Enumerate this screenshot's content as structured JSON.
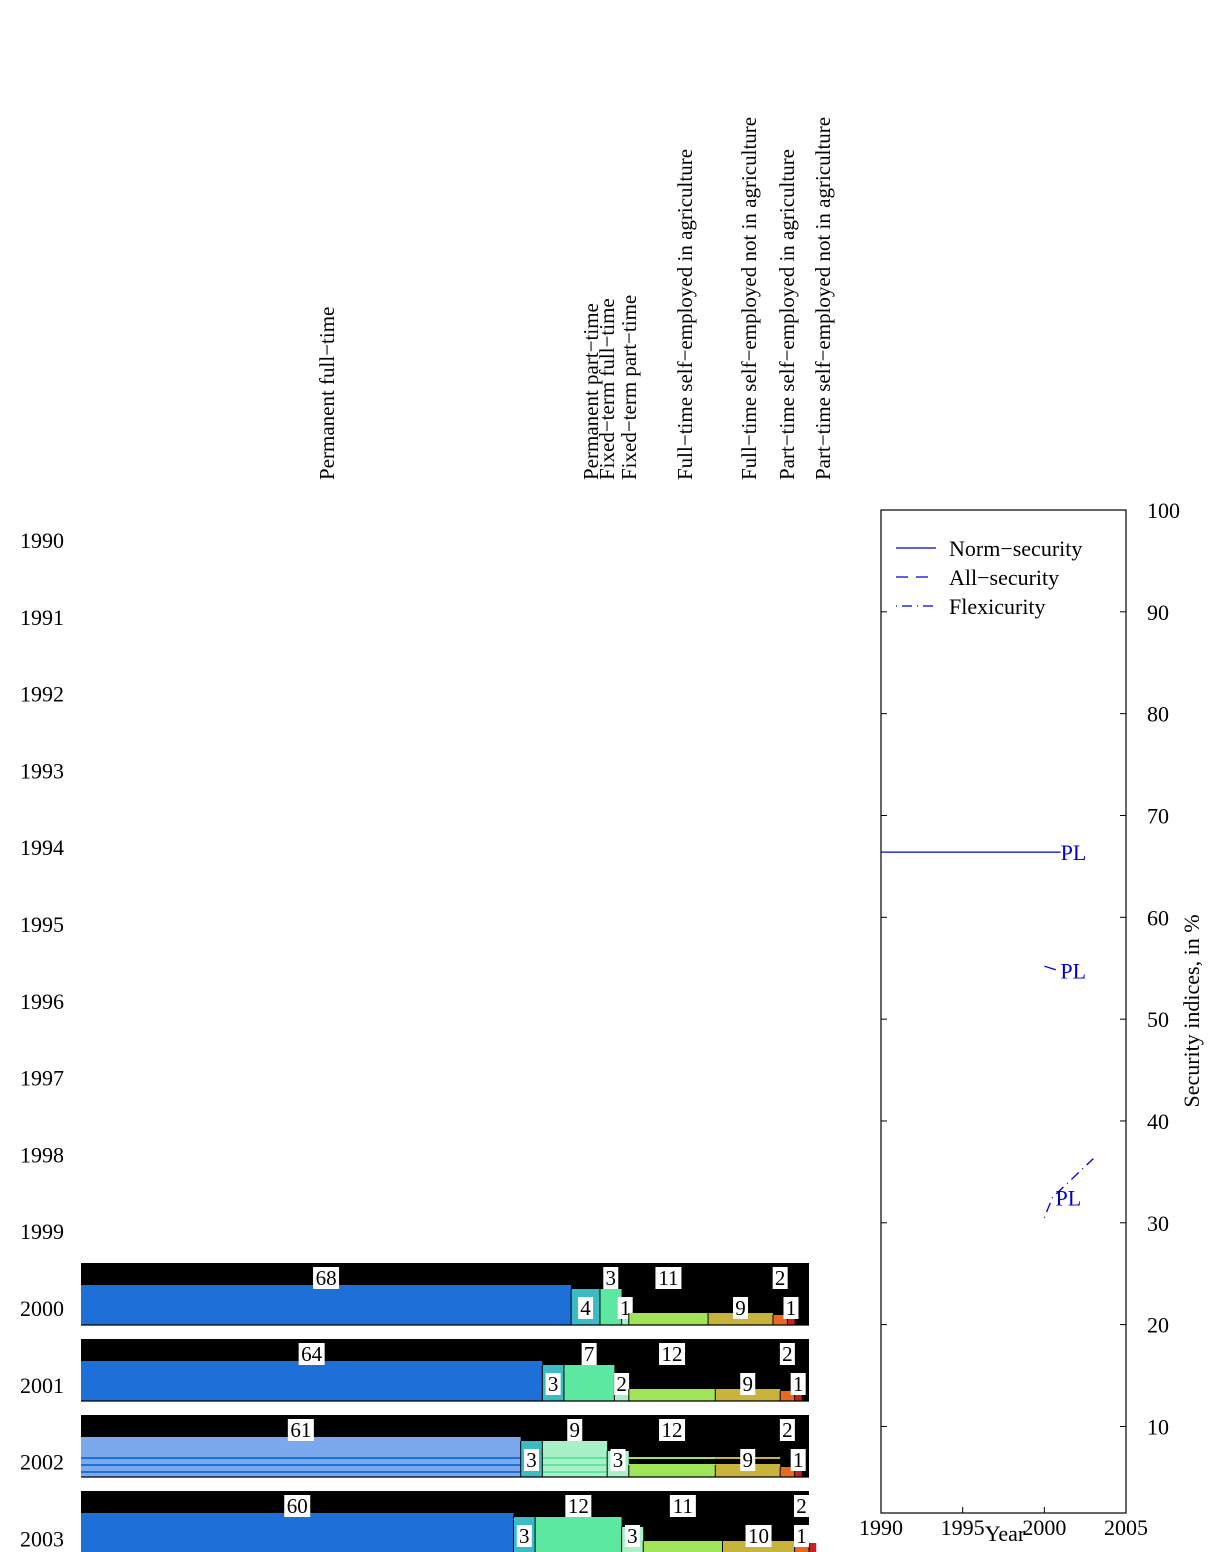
{
  "chart_data": [
    {
      "type": "bar",
      "stacked": true,
      "orientation": "horizontal",
      "rows": [
        "1990",
        "1991",
        "1992",
        "1993",
        "1994",
        "1995",
        "1996",
        "1997",
        "1998",
        "1999",
        "2000",
        "2001",
        "2002",
        "2003"
      ],
      "categories": [
        "Permanent full−time",
        "Permanent part−time",
        "Fixed−term full−time",
        "Fixed−term part−time",
        "Full−time self−employed in agriculture",
        "Full−time self−employed not in agriculture",
        "Part−time self−employed in agriculture",
        "Part−time self−employed not in agriculture"
      ],
      "colors": [
        "#1f6fd9",
        "#3bbcc4",
        "#5ce8a0",
        "#a8f0c8",
        "#a0e45a",
        "#c8b43c",
        "#e86a1e",
        "#c82020"
      ],
      "values": {
        "2000": [
          68,
          4,
          3,
          1,
          11,
          9,
          2,
          1
        ],
        "2001": [
          64,
          3,
          7,
          2,
          12,
          9,
          2,
          1
        ],
        "2002": [
          61,
          3,
          9,
          3,
          12,
          9,
          2,
          1
        ],
        "2003": [
          60,
          3,
          12,
          3,
          11,
          10,
          2,
          1
        ]
      },
      "labels": {
        "2000": [
          "68",
          "4",
          "3",
          "1",
          "11",
          "9",
          "2",
          "1"
        ],
        "2001": [
          "64",
          "3",
          "7",
          "2",
          "12",
          "9",
          "2",
          "1"
        ],
        "2002": [
          "61",
          "3",
          "9",
          "3",
          "12",
          "9",
          "2",
          "1"
        ],
        "2003": [
          "60",
          "3",
          "12",
          "3",
          "11",
          "10",
          "2",
          "1"
        ]
      },
      "hatched_rows": [
        "2002"
      ]
    },
    {
      "type": "line",
      "xlabel": "Year",
      "ylabel": "Security indices, in %",
      "xlim": [
        1990,
        2005
      ],
      "ylim": [
        1.5,
        100
      ],
      "xticks": [
        "1990",
        "1995",
        "2000",
        "2005"
      ],
      "yticks": [
        "10",
        "20",
        "30",
        "40",
        "50",
        "60",
        "70",
        "80",
        "90",
        "100"
      ],
      "legend_position": "top-left",
      "series": [
        {
          "name": "Norm−security",
          "style": "solid",
          "color": "#0000cc",
          "points": [
            [
              1990,
              66.4
            ],
            [
              2001,
              66.4
            ]
          ],
          "end_label": "PL"
        },
        {
          "name": "All−security",
          "style": "dashed",
          "color": "#0000cc",
          "points": [
            [
              2000,
              55.2
            ],
            [
              2000.8,
              54.8
            ]
          ],
          "end_label": "PL"
        },
        {
          "name": "Flexicurity",
          "style": "dashdot",
          "color": "#0000cc",
          "points": [
            [
              2000,
              30.5
            ],
            [
              2000.5,
              32.5
            ],
            [
              2003,
              36.3
            ]
          ],
          "end_label": "PL"
        }
      ]
    }
  ]
}
